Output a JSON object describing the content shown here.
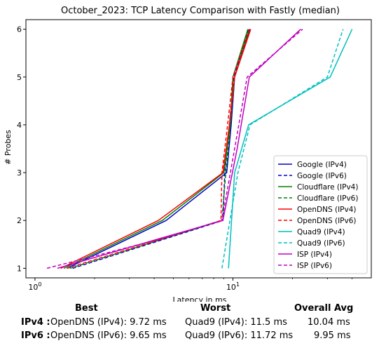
{
  "chart_data": {
    "type": "line",
    "title": "October_2023: TCP Latency Comparison with Fastly (median)",
    "xlabel": "Latency in ms",
    "ylabel": "# Probes",
    "xscale": "log",
    "xlim": [
      0.9,
      50
    ],
    "ylim": [
      0.8,
      6.2
    ],
    "x_tick_labels": [
      {
        "value": 1,
        "label": "10^0"
      },
      {
        "value": 10,
        "label": "10^1"
      }
    ],
    "y_ticks": [
      1,
      2,
      3,
      4,
      5,
      6
    ],
    "grid": false,
    "legend_position": "lower-right",
    "series": [
      {
        "name": "Google (IPv4)",
        "color": "#0000cc",
        "dash": "solid",
        "points": [
          [
            1.45,
            1
          ],
          [
            4.6,
            2
          ],
          [
            9.3,
            3
          ],
          [
            9.8,
            4
          ],
          [
            10.2,
            5
          ],
          [
            12.2,
            6
          ]
        ]
      },
      {
        "name": "Google (IPv6)",
        "color": "#0000cc",
        "dash": "dashed",
        "points": [
          [
            1.55,
            1
          ],
          [
            8.9,
            2
          ],
          [
            9.1,
            3
          ],
          [
            9.6,
            4
          ],
          [
            10.1,
            5
          ],
          [
            12.0,
            6
          ]
        ]
      },
      {
        "name": "Cloudflare (IPv4)",
        "color": "#008000",
        "dash": "solid",
        "points": [
          [
            1.4,
            1
          ],
          [
            4.4,
            2
          ],
          [
            9.0,
            3
          ],
          [
            9.7,
            4
          ],
          [
            10.0,
            5
          ],
          [
            11.9,
            6
          ]
        ]
      },
      {
        "name": "Cloudflare (IPv6)",
        "color": "#008000",
        "dash": "dashed",
        "points": [
          [
            1.5,
            1
          ],
          [
            8.8,
            2
          ],
          [
            9.2,
            3
          ],
          [
            9.7,
            4
          ],
          [
            10.2,
            5
          ],
          [
            12.1,
            6
          ]
        ]
      },
      {
        "name": "OpenDNS (IPv4)",
        "color": "#ff0000",
        "dash": "solid",
        "points": [
          [
            1.35,
            1
          ],
          [
            4.2,
            2
          ],
          [
            8.9,
            3
          ],
          [
            9.6,
            4
          ],
          [
            10.2,
            5
          ],
          [
            12.3,
            6
          ]
        ]
      },
      {
        "name": "OpenDNS (IPv6)",
        "color": "#ff0000",
        "dash": "dashed",
        "points": [
          [
            1.45,
            1
          ],
          [
            8.7,
            2
          ],
          [
            8.8,
            3
          ],
          [
            9.4,
            4
          ],
          [
            10.0,
            5
          ],
          [
            12.1,
            6
          ]
        ]
      },
      {
        "name": "Quad9 (IPv4)",
        "color": "#00bfbf",
        "dash": "solid",
        "points": [
          [
            9.5,
            1
          ],
          [
            10.2,
            3
          ],
          [
            12.0,
            4
          ],
          [
            31.0,
            5
          ],
          [
            40.0,
            6
          ]
        ]
      },
      {
        "name": "Quad9 (IPv6)",
        "color": "#00bfbf",
        "dash": "dashed",
        "points": [
          [
            8.8,
            1
          ],
          [
            10.6,
            3
          ],
          [
            12.2,
            4
          ],
          [
            30.0,
            5
          ],
          [
            36.0,
            6
          ]
        ]
      },
      {
        "name": "ISP (IPv4)",
        "color": "#bf00bf",
        "dash": "solid",
        "points": [
          [
            1.3,
            1
          ],
          [
            4.5,
            1.65
          ],
          [
            8.9,
            2
          ],
          [
            10.5,
            3.5
          ],
          [
            12.1,
            5
          ],
          [
            22.0,
            6
          ]
        ]
      },
      {
        "name": "ISP (IPv6)",
        "color": "#bf00bf",
        "dash": "dashed",
        "points": [
          [
            1.15,
            1
          ],
          [
            4.2,
            1.6
          ],
          [
            8.8,
            2
          ],
          [
            10.2,
            3.5
          ],
          [
            11.8,
            5
          ],
          [
            22.5,
            6
          ]
        ]
      }
    ]
  },
  "summary": {
    "headers": {
      "best": "Best",
      "worst": "Worst",
      "overall": "Overall Avg"
    },
    "rows": [
      {
        "label": "IPv4 :",
        "best": "OpenDNS (IPv4): 9.72 ms",
        "worst": "Quad9 (IPv4): 11.5 ms",
        "overall": "10.04 ms"
      },
      {
        "label": "IPv6 :",
        "best": "OpenDNS (IPv6): 9.65 ms",
        "worst": "Quad9 (IPv6): 11.72 ms",
        "overall": "9.95 ms"
      }
    ]
  }
}
